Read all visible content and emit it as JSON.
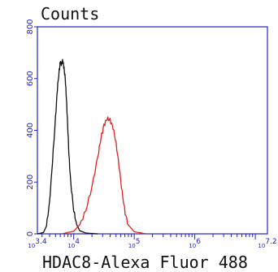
{
  "chart_data": {
    "type": "line",
    "xlabel": "HDAC8-Alexa Fluor 488",
    "ylabel": "Counts",
    "x_scale": "log",
    "xlim_exponent": [
      3.4,
      7.2
    ],
    "ylim": [
      0,
      800
    ],
    "y_ticks": [
      {
        "value": 0,
        "label": "0"
      },
      {
        "value": 200,
        "label": "200"
      },
      {
        "value": 400,
        "label": "400"
      },
      {
        "value": 600,
        "label": "600"
      },
      {
        "value": 800,
        "label": "800"
      }
    ],
    "x_ticks": [
      {
        "exponent": 3.4,
        "base": "10",
        "sup": "3.4"
      },
      {
        "exponent": 4,
        "base": "10",
        "sup": "4"
      },
      {
        "exponent": 5,
        "base": "10",
        "sup": "5"
      },
      {
        "exponent": 6,
        "base": "10",
        "sup": "6"
      },
      {
        "exponent": 7.2,
        "base": "10",
        "sup": "7.2"
      }
    ],
    "grid": false,
    "legend": "none",
    "axis_color": "#2222cc",
    "series": [
      {
        "color": "#111111",
        "x_exponent": [
          3.4,
          3.5,
          3.55,
          3.6,
          3.65,
          3.7,
          3.73,
          3.76,
          3.78,
          3.8,
          3.82,
          3.84,
          3.86,
          3.88,
          3.9,
          3.92,
          3.95,
          4.0,
          4.05,
          4.1,
          4.2,
          4.4
        ],
        "y": [
          0,
          5,
          30,
          120,
          280,
          450,
          560,
          630,
          665,
          655,
          670,
          640,
          600,
          520,
          420,
          310,
          200,
          90,
          35,
          12,
          3,
          0
        ]
      },
      {
        "color": "#e0201e",
        "x_exponent": [
          3.8,
          4.0,
          4.1,
          4.2,
          4.3,
          4.4,
          4.45,
          4.5,
          4.55,
          4.6,
          4.65,
          4.7,
          4.75,
          4.8,
          4.85,
          4.9,
          5.0,
          5.2
        ],
        "y": [
          0,
          10,
          35,
          90,
          180,
          300,
          370,
          420,
          445,
          440,
          410,
          350,
          260,
          160,
          80,
          35,
          8,
          0
        ]
      }
    ]
  }
}
